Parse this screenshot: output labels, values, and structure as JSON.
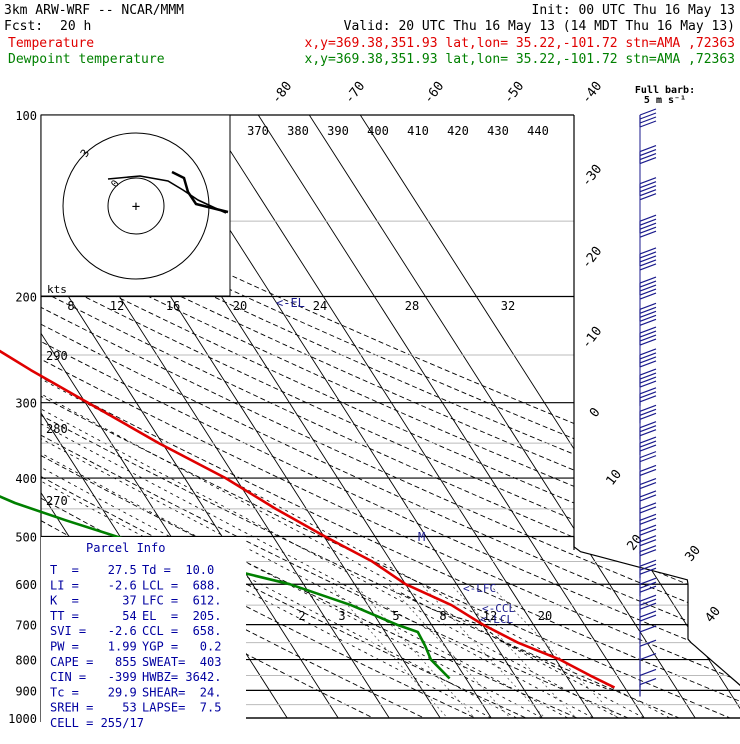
{
  "header": {
    "model": "3km ARW-WRF -- NCAR/MMM",
    "init": "Init: 00 UTC Thu 16 May 13",
    "fcst_label": "Fcst:",
    "fcst_hours": "20 h",
    "valid": "Valid: 20 UTC Thu 16 May 13 (14 MDT Thu 16 May 13)",
    "lines": [
      {
        "label": "Temperature",
        "loc": "x,y=369.38,351.93   lat,lon= 35.22,-101.72  stn=AMA ,72363",
        "color": "#e00000"
      },
      {
        "label": "Dewpoint temperature",
        "loc": "x,y=369.38,351.93   lat,lon= 35.22,-101.72  stn=AMA ,72363",
        "color": "#008000"
      }
    ]
  },
  "legend": {
    "barb_title": "Full barb:",
    "barb_value": "5 m s⁻¹"
  },
  "hodograph": {
    "units": "kts",
    "ring_labels": [
      "3",
      "0"
    ]
  },
  "annotations": {
    "el": "<-EL",
    "lfc": "<-LFC",
    "ccl": "<-CCL",
    "lcl": "<-LCL",
    "m": "M"
  },
  "parcel_info": {
    "title": "Parcel Info",
    "rows": [
      [
        "T  =    27.5",
        "Td =  10.0"
      ],
      [
        "LI =    -2.6",
        "LCL =  688."
      ],
      [
        "K  =      37",
        "LFC =  612."
      ],
      [
        "TT =      54",
        "EL  =  205."
      ],
      [
        "SVI =   -2.6",
        "CCL =  658."
      ],
      [
        "PW =    1.99",
        "YGP =   0.2"
      ],
      [
        "CAPE =   855",
        "SWEAT=  403"
      ],
      [
        "CIN =   -399",
        "HWBZ= 3642."
      ],
      [
        "Tc =    29.9",
        "SHEAR=  24."
      ],
      [
        "SREH =    53",
        "LAPSE=  7.5"
      ],
      [
        "CELL = 255/17",
        ""
      ]
    ]
  },
  "chart_data": {
    "type": "line",
    "title": "",
    "xlabel": "",
    "ylabel": "",
    "pressure_levels": [
      100,
      200,
      300,
      400,
      500,
      600,
      700,
      800,
      900,
      1000
    ],
    "temperature_ticks": [
      -80,
      -70,
      -60,
      -50,
      -40,
      -30,
      -20,
      -10,
      0,
      10,
      20,
      30,
      40
    ],
    "theta_labels": [
      370,
      380,
      390,
      400,
      410,
      420,
      430,
      440
    ],
    "lower_theta_labels": [
      290,
      280,
      270
    ],
    "mixing_ratio_labels": [
      8,
      12,
      16,
      20,
      24,
      28,
      32
    ],
    "lower_mixing_labels": [
      2,
      3,
      5,
      8,
      12,
      20
    ],
    "series": [
      {
        "name": "Temperature",
        "color": "#e00000",
        "pressure": [
          105,
          115,
          125,
          150,
          175,
          190,
          205,
          230,
          265,
          300,
          350,
          400,
          450,
          500,
          550,
          600,
          650,
          700,
          750,
          800,
          850,
          890
        ],
        "temperature": [
          -64.1,
          -65.4,
          -65.0,
          -63.5,
          -62.7,
          -62.6,
          -59.4,
          -53.8,
          -46.6,
          -39.5,
          -30.7,
          -22.0,
          -16.0,
          -9.8,
          -3.7,
          0.0,
          6.4,
          10.1,
          14.7,
          20.8,
          24.7,
          28.0
        ]
      },
      {
        "name": "Dewpoint temperature",
        "color": "#008000",
        "pressure": [
          100,
          130,
          160,
          200,
          250,
          300,
          330,
          380,
          410,
          440,
          470,
          500,
          550,
          600,
          650,
          700,
          720,
          760,
          800,
          860
        ],
        "temperature": [
          -85.2,
          -86.9,
          -87.4,
          -86.8,
          -84.6,
          -79.8,
          -76.9,
          -76.1,
          -72.5,
          -66.4,
          -58.6,
          -50.7,
          -38.2,
          -22.7,
          -13.3,
          -6.8,
          -3.6,
          -3.9,
          -4.5,
          -3.2
        ]
      }
    ],
    "parcel_path": {
      "pressure": [
        620,
        660,
        700,
        750,
        800,
        850,
        900
      ],
      "temperature": [
        -2.0,
        2.0,
        9.5,
        12.0,
        17.0,
        21.0,
        27.0
      ]
    },
    "winds": {
      "pressure": [
        100,
        115,
        130,
        150,
        170,
        190,
        210,
        230,
        250,
        270,
        290,
        310,
        330,
        350,
        370,
        390,
        410,
        430,
        450,
        470,
        490,
        510,
        530,
        560,
        600,
        640,
        680,
        720,
        760,
        800,
        850,
        880
      ],
      "speed_ms": [
        20,
        20,
        25,
        25,
        25,
        25,
        25,
        20,
        20,
        20,
        15,
        15,
        15,
        15,
        10,
        10,
        10,
        10,
        10,
        10,
        10,
        10,
        10,
        15,
        15,
        15,
        10,
        5,
        5,
        5,
        5,
        5
      ]
    }
  }
}
